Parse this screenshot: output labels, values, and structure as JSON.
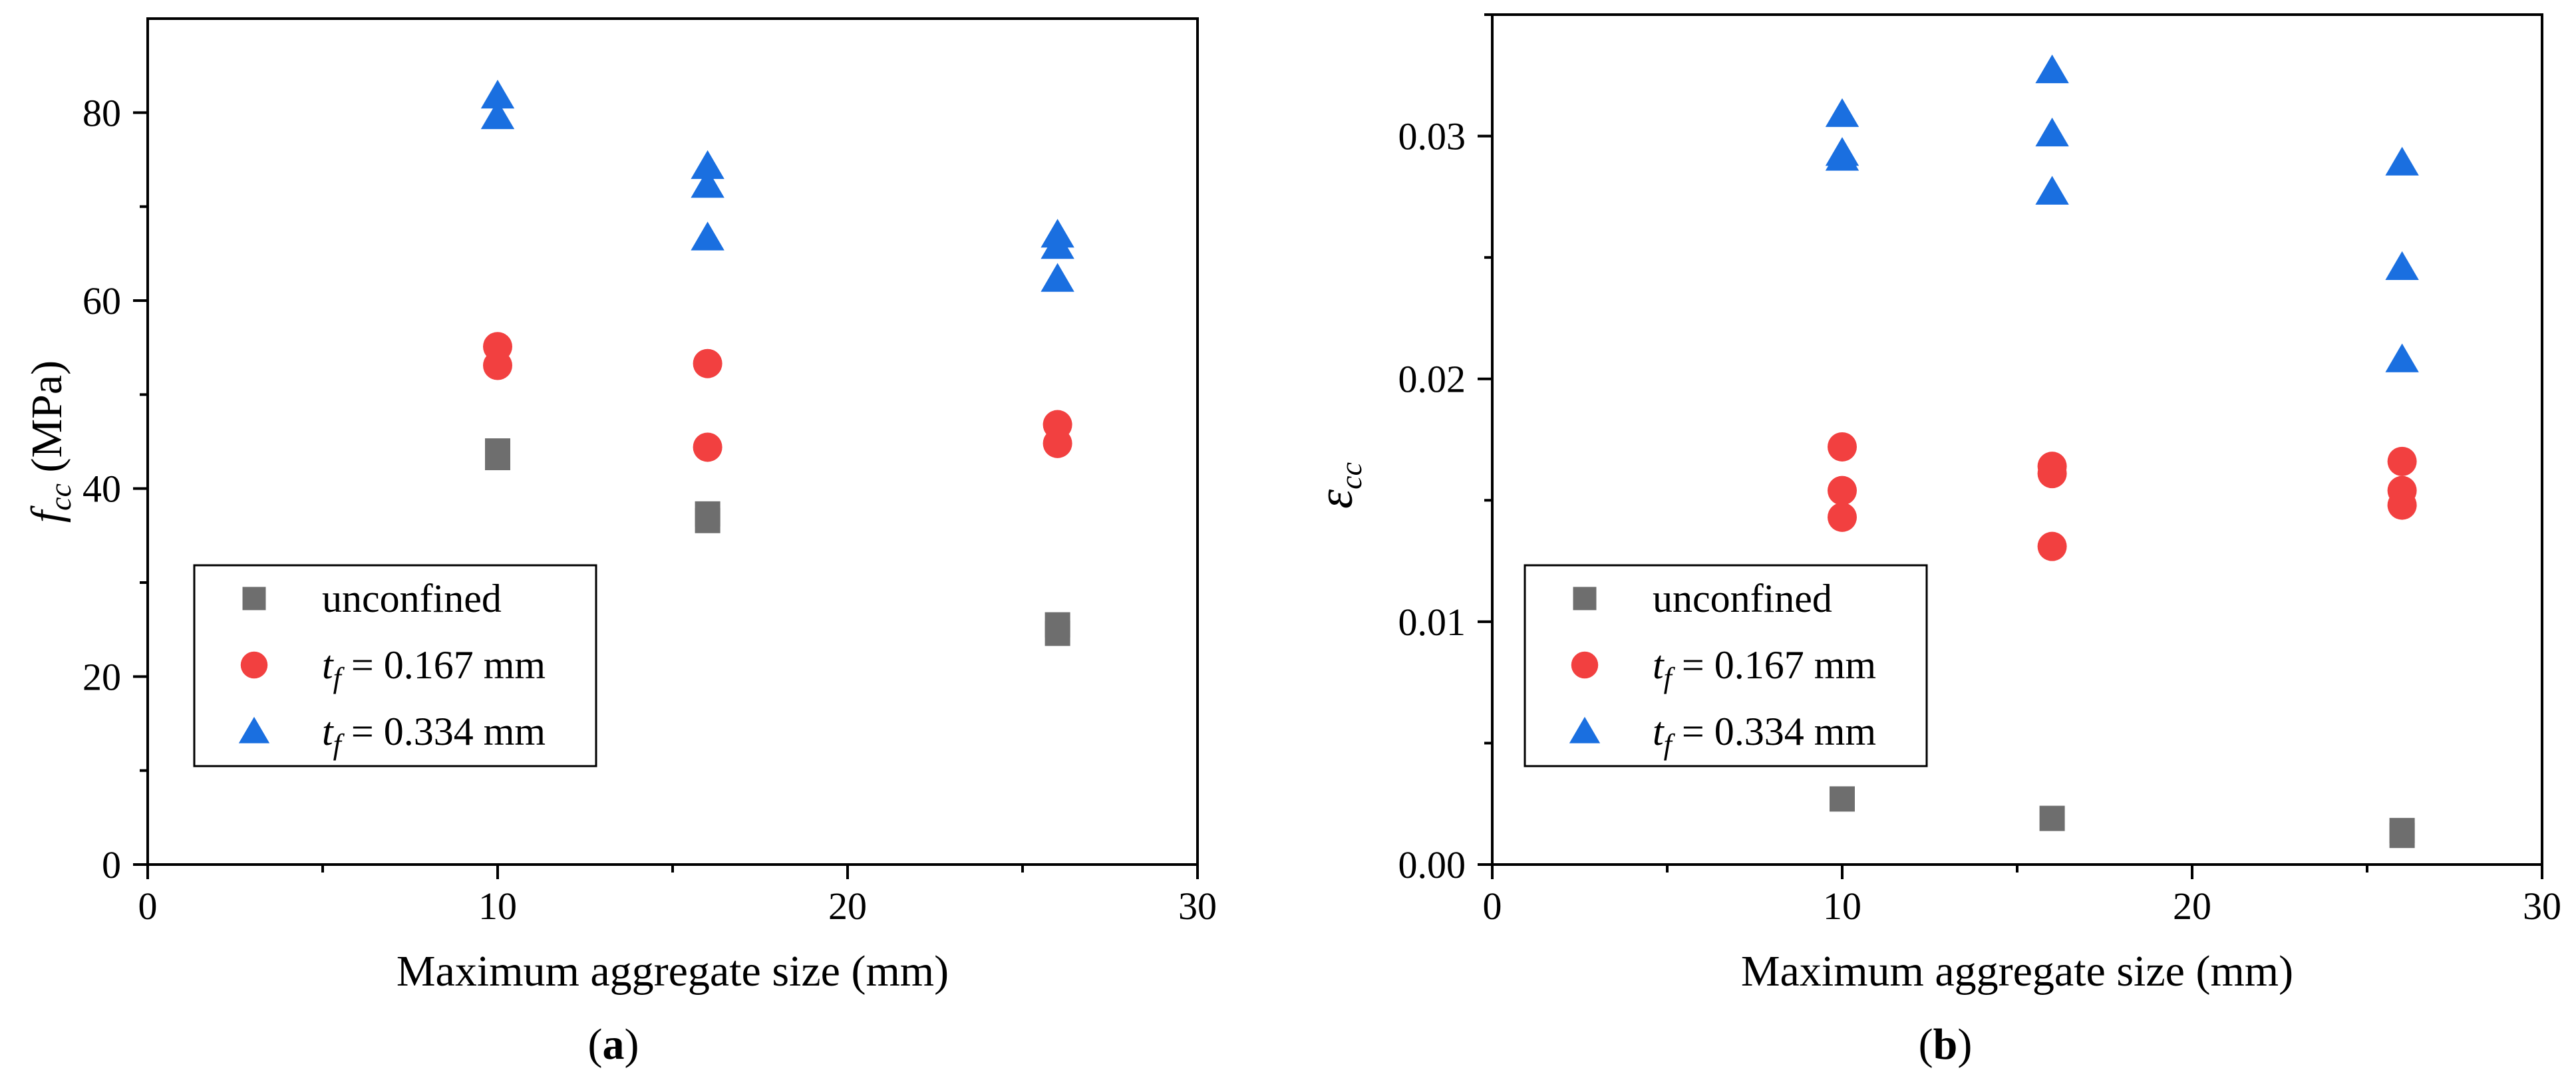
{
  "chart_data": [
    {
      "panel_label": "(a)",
      "panel_letter": "a",
      "type": "scatter",
      "xlabel": "Maximum aggregate size (mm)",
      "ylabel": "f_cc (MPa)",
      "ylabel_main": "f",
      "ylabel_sub": "cc",
      "ylabel_rest": " (MPa)",
      "xlim": [
        0,
        30
      ],
      "ylim": [
        0,
        90
      ],
      "xticks": [
        0,
        10,
        20,
        30
      ],
      "xtick_labels": [
        "0",
        "10",
        "20",
        "30"
      ],
      "yticks": [
        0,
        20,
        40,
        60,
        80
      ],
      "ytick_labels": [
        "0",
        "20",
        "40",
        "60",
        "80"
      ],
      "legend_position": "lower-left",
      "series": [
        {
          "name": "unconfined",
          "marker": "square",
          "color": "#6e6e6e",
          "x": [
            10,
            10,
            16,
            16,
            26,
            26
          ],
          "y": [
            44.0,
            43.3,
            37.3,
            36.6,
            25.5,
            24.6
          ]
        },
        {
          "name": "t_f = 0.167 mm",
          "marker": "circle",
          "color": "#f24040",
          "x": [
            10,
            10,
            16,
            16,
            26,
            26
          ],
          "y": [
            55.1,
            53.1,
            53.3,
            44.4,
            46.8,
            44.8
          ]
        },
        {
          "name": "t_f = 0.334 mm",
          "marker": "triangle",
          "color": "#1a6fe0",
          "x": [
            10,
            10,
            16,
            16,
            16,
            26,
            26,
            26
          ],
          "y": [
            81.8,
            79.6,
            74.3,
            72.3,
            66.7,
            67.0,
            65.8,
            62.3
          ]
        }
      ]
    },
    {
      "panel_label": "(b)",
      "panel_letter": "b",
      "type": "scatter",
      "xlabel": "Maximum aggregate size (mm)",
      "ylabel": "ε_cc",
      "ylabel_main": "ε",
      "ylabel_sub": "cc",
      "ylabel_rest": "",
      "xlim": [
        0,
        30
      ],
      "ylim": [
        0,
        0.035
      ],
      "xticks": [
        0,
        10,
        20,
        30
      ],
      "xtick_labels": [
        "0",
        "10",
        "20",
        "30"
      ],
      "yticks": [
        0,
        0.01,
        0.02,
        0.03
      ],
      "ytick_labels": [
        "0.00",
        "0.01",
        "0.02",
        "0.03"
      ],
      "legend_position": "lower-left",
      "series": [
        {
          "name": "unconfined",
          "marker": "square",
          "color": "#6e6e6e",
          "x": [
            10,
            16,
            26,
            26
          ],
          "y": [
            0.0027,
            0.0019,
            0.0014,
            0.0012
          ]
        },
        {
          "name": "t_f = 0.167 mm",
          "marker": "circle",
          "color": "#f24040",
          "x": [
            10,
            10,
            10,
            16,
            16,
            16,
            26,
            26,
            26
          ],
          "y": [
            0.0172,
            0.0154,
            0.0143,
            0.0164,
            0.0161,
            0.0131,
            0.0166,
            0.0154,
            0.0148
          ]
        },
        {
          "name": "t_f = 0.334 mm",
          "marker": "triangle",
          "color": "#1a6fe0",
          "x": [
            10,
            10,
            10,
            16,
            16,
            16,
            26,
            26,
            26
          ],
          "y": [
            0.0309,
            0.0293,
            0.0291,
            0.0327,
            0.0301,
            0.0277,
            0.0289,
            0.0246,
            0.0208
          ]
        }
      ]
    }
  ],
  "legend_items": [
    {
      "base": "unconfined",
      "sub": "",
      "rest": ""
    },
    {
      "base": "t",
      "sub": "f",
      "rest": " = 0.167 mm"
    },
    {
      "base": "t",
      "sub": "f",
      "rest": " = 0.334 mm"
    }
  ]
}
